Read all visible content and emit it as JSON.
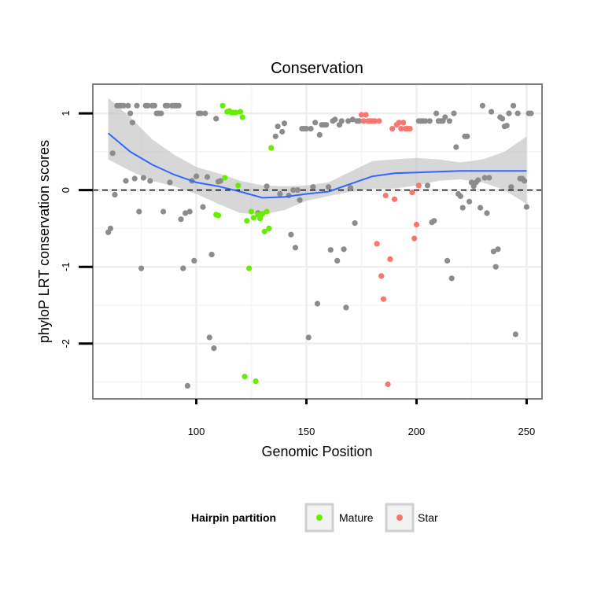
{
  "chart_data": {
    "type": "scatter",
    "title": "Conservation",
    "xlabel": "Genomic Position",
    "ylabel": "phyloP LRT conservation scores",
    "xlim": [
      53,
      257
    ],
    "ylim": [
      -2.72,
      1.38
    ],
    "x_ticks": [
      100,
      150,
      200,
      250
    ],
    "y_ticks": [
      -2,
      -1,
      0,
      1
    ],
    "x_tick_labels": [
      "100",
      "150",
      "200",
      "250"
    ],
    "y_tick_labels": [
      "-2",
      "-1",
      "0",
      "1"
    ],
    "grid": true,
    "reference_line": {
      "y": 0,
      "style": "dashed"
    },
    "legend": {
      "title": "Hairpin partition",
      "position": "bottom",
      "entries": [
        {
          "name": "Mature",
          "color": "#66ee00"
        },
        {
          "name": "Star",
          "color": "#f8766d"
        }
      ]
    },
    "colors": {
      "other": "#8c8c8c",
      "mature": "#66ee00",
      "star": "#f8766d",
      "smooth": "#3366ff",
      "ribbon": "#bdbdbd"
    },
    "series": [
      {
        "name": "Other",
        "points": [
          [
            60,
            -0.55
          ],
          [
            61,
            -0.5
          ],
          [
            62,
            0.48
          ],
          [
            63,
            -0.06
          ],
          [
            64,
            1.1
          ],
          [
            65,
            1.1
          ],
          [
            66,
            1.1
          ],
          [
            67,
            1.1
          ],
          [
            68,
            0.12
          ],
          [
            69,
            1.1
          ],
          [
            70,
            1.0
          ],
          [
            71,
            0.88
          ],
          [
            72,
            0.15
          ],
          [
            73,
            1.1
          ],
          [
            74,
            -0.28
          ],
          [
            75,
            -1.02
          ],
          [
            76,
            0.16
          ],
          [
            77,
            1.1
          ],
          [
            78,
            1.1
          ],
          [
            79,
            0.12
          ],
          [
            80,
            1.1
          ],
          [
            81,
            1.1
          ],
          [
            82,
            1.0
          ],
          [
            83,
            1.0
          ],
          [
            84,
            1.0
          ],
          [
            85,
            -0.28
          ],
          [
            86,
            1.1
          ],
          [
            87,
            1.1
          ],
          [
            88,
            0.1
          ],
          [
            89,
            1.1
          ],
          [
            90,
            1.1
          ],
          [
            91,
            1.1
          ],
          [
            92,
            1.1
          ],
          [
            93,
            -0.38
          ],
          [
            94,
            -1.02
          ],
          [
            95,
            -0.3
          ],
          [
            96,
            -2.55
          ],
          [
            97,
            -0.28
          ],
          [
            98,
            0.12
          ],
          [
            99,
            -0.92
          ],
          [
            100,
            0.18
          ],
          [
            101,
            1.0
          ],
          [
            102,
            1.0
          ],
          [
            103,
            -0.22
          ],
          [
            104,
            1.0
          ],
          [
            105,
            0.17
          ],
          [
            106,
            -1.92
          ],
          [
            107,
            -0.84
          ],
          [
            108,
            -2.06
          ],
          [
            109,
            0.93
          ],
          [
            110,
            0.11
          ],
          [
            111,
            0.12
          ],
          [
            128,
            -0.3
          ],
          [
            129,
            -0.35
          ],
          [
            132,
            0.05
          ],
          [
            136,
            0.7
          ],
          [
            137,
            0.83
          ],
          [
            138,
            -0.05
          ],
          [
            139,
            0.76
          ],
          [
            140,
            0.87
          ],
          [
            142,
            -0.07
          ],
          [
            143,
            -0.58
          ],
          [
            144,
            0.0
          ],
          [
            145,
            -0.75
          ],
          [
            146,
            0.0
          ],
          [
            147,
            -0.13
          ],
          [
            148,
            0.8
          ],
          [
            149,
            0.8
          ],
          [
            150,
            0.8
          ],
          [
            151,
            -1.92
          ],
          [
            152,
            0.8
          ],
          [
            153,
            0.04
          ],
          [
            154,
            0.88
          ],
          [
            155,
            -1.48
          ],
          [
            156,
            0.72
          ],
          [
            157,
            0.85
          ],
          [
            158,
            0.85
          ],
          [
            159,
            0.85
          ],
          [
            160,
            0.04
          ],
          [
            161,
            -0.78
          ],
          [
            162,
            0.9
          ],
          [
            163,
            0.92
          ],
          [
            164,
            -0.92
          ],
          [
            165,
            0.85
          ],
          [
            166,
            0.9
          ],
          [
            167,
            -0.77
          ],
          [
            168,
            -1.53
          ],
          [
            169,
            0.9
          ],
          [
            170,
            0.03
          ],
          [
            171,
            0.92
          ],
          [
            172,
            -0.43
          ],
          [
            173,
            0.9
          ],
          [
            174,
            0.9
          ],
          [
            201,
            0.9
          ],
          [
            202,
            0.9
          ],
          [
            203,
            0.9
          ],
          [
            204,
            0.9
          ],
          [
            205,
            0.06
          ],
          [
            206,
            0.9
          ],
          [
            207,
            -0.42
          ],
          [
            208,
            -0.4
          ],
          [
            209,
            1.0
          ],
          [
            210,
            0.9
          ],
          [
            211,
            0.9
          ],
          [
            212,
            0.9
          ],
          [
            213,
            0.95
          ],
          [
            214,
            -0.92
          ],
          [
            215,
            0.9
          ],
          [
            216,
            -1.15
          ],
          [
            217,
            1.0
          ],
          [
            218,
            0.56
          ],
          [
            219,
            -0.05
          ],
          [
            220,
            -0.08
          ],
          [
            221,
            -0.23
          ],
          [
            222,
            0.7
          ],
          [
            223,
            0.7
          ],
          [
            224,
            -0.15
          ],
          [
            225,
            0.1
          ],
          [
            226,
            0.05
          ],
          [
            227,
            0.1
          ],
          [
            228,
            0.13
          ],
          [
            229,
            -0.23
          ],
          [
            230,
            1.1
          ],
          [
            231,
            0.16
          ],
          [
            232,
            -0.3
          ],
          [
            233,
            0.16
          ],
          [
            234,
            1.02
          ],
          [
            235,
            -0.8
          ],
          [
            236,
            -1.0
          ],
          [
            237,
            -0.77
          ],
          [
            238,
            0.95
          ],
          [
            239,
            0.93
          ],
          [
            240,
            0.83
          ],
          [
            241,
            0.84
          ],
          [
            242,
            1.0
          ],
          [
            243,
            0.04
          ],
          [
            244,
            1.1
          ],
          [
            245,
            -1.88
          ],
          [
            246,
            1.0
          ],
          [
            247,
            0.15
          ],
          [
            248,
            0.15
          ],
          [
            249,
            0.12
          ],
          [
            250,
            -0.22
          ],
          [
            251,
            1.0
          ],
          [
            252,
            1.0
          ]
        ]
      },
      {
        "name": "Mature",
        "points": [
          [
            109,
            -0.32
          ],
          [
            110,
            -0.33
          ],
          [
            112,
            1.1
          ],
          [
            113,
            0.16
          ],
          [
            114,
            1.02
          ],
          [
            115,
            1.03
          ],
          [
            116,
            1.01
          ],
          [
            117,
            1.01
          ],
          [
            118,
            1.01
          ],
          [
            119,
            0.06
          ],
          [
            120,
            1.02
          ],
          [
            121,
            0.95
          ],
          [
            122,
            -2.43
          ],
          [
            123,
            -0.4
          ],
          [
            124,
            -1.02
          ],
          [
            125,
            -0.28
          ],
          [
            126,
            -0.36
          ],
          [
            127,
            -2.49
          ],
          [
            128,
            -0.32
          ],
          [
            129,
            -0.37
          ],
          [
            130,
            -0.31
          ],
          [
            131,
            -0.54
          ],
          [
            132,
            -0.28
          ],
          [
            133,
            -0.5
          ],
          [
            134,
            0.55
          ]
        ]
      },
      {
        "name": "Star",
        "points": [
          [
            175,
            0.98
          ],
          [
            176,
            0.9
          ],
          [
            177,
            0.98
          ],
          [
            178,
            0.9
          ],
          [
            179,
            0.9
          ],
          [
            180,
            0.9
          ],
          [
            181,
            0.9
          ],
          [
            182,
            -0.7
          ],
          [
            183,
            0.9
          ],
          [
            184,
            -1.12
          ],
          [
            185,
            -1.42
          ],
          [
            186,
            -0.07
          ],
          [
            187,
            -2.53
          ],
          [
            188,
            -0.9
          ],
          [
            189,
            0.8
          ],
          [
            190,
            -0.12
          ],
          [
            191,
            0.85
          ],
          [
            192,
            0.88
          ],
          [
            193,
            0.8
          ],
          [
            194,
            0.88
          ],
          [
            195,
            0.8
          ],
          [
            196,
            0.8
          ],
          [
            197,
            0.8
          ],
          [
            198,
            -0.03
          ],
          [
            199,
            -0.63
          ],
          [
            200,
            -0.45
          ],
          [
            201,
            0.06
          ]
        ]
      }
    ],
    "smooth": {
      "x": [
        60,
        70,
        80,
        90,
        100,
        110,
        120,
        130,
        140,
        150,
        160,
        170,
        180,
        190,
        200,
        210,
        220,
        230,
        240,
        250
      ],
      "y": [
        0.74,
        0.5,
        0.33,
        0.2,
        0.1,
        0.05,
        -0.02,
        -0.1,
        -0.09,
        -0.05,
        -0.02,
        0.08,
        0.18,
        0.22,
        0.23,
        0.24,
        0.25,
        0.25,
        0.25,
        0.25
      ],
      "lower": [
        0.4,
        0.25,
        0.12,
        0.05,
        -0.05,
        -0.18,
        -0.3,
        -0.32,
        -0.26,
        -0.14,
        -0.08,
        -0.02,
        0.02,
        0.02,
        0.06,
        0.12,
        0.14,
        0.1,
        0.0,
        -0.18
      ],
      "upper": [
        1.2,
        0.95,
        0.66,
        0.46,
        0.3,
        0.22,
        0.12,
        0.06,
        0.05,
        0.06,
        0.1,
        0.24,
        0.38,
        0.4,
        0.42,
        0.4,
        0.36,
        0.4,
        0.5,
        0.7
      ]
    }
  }
}
